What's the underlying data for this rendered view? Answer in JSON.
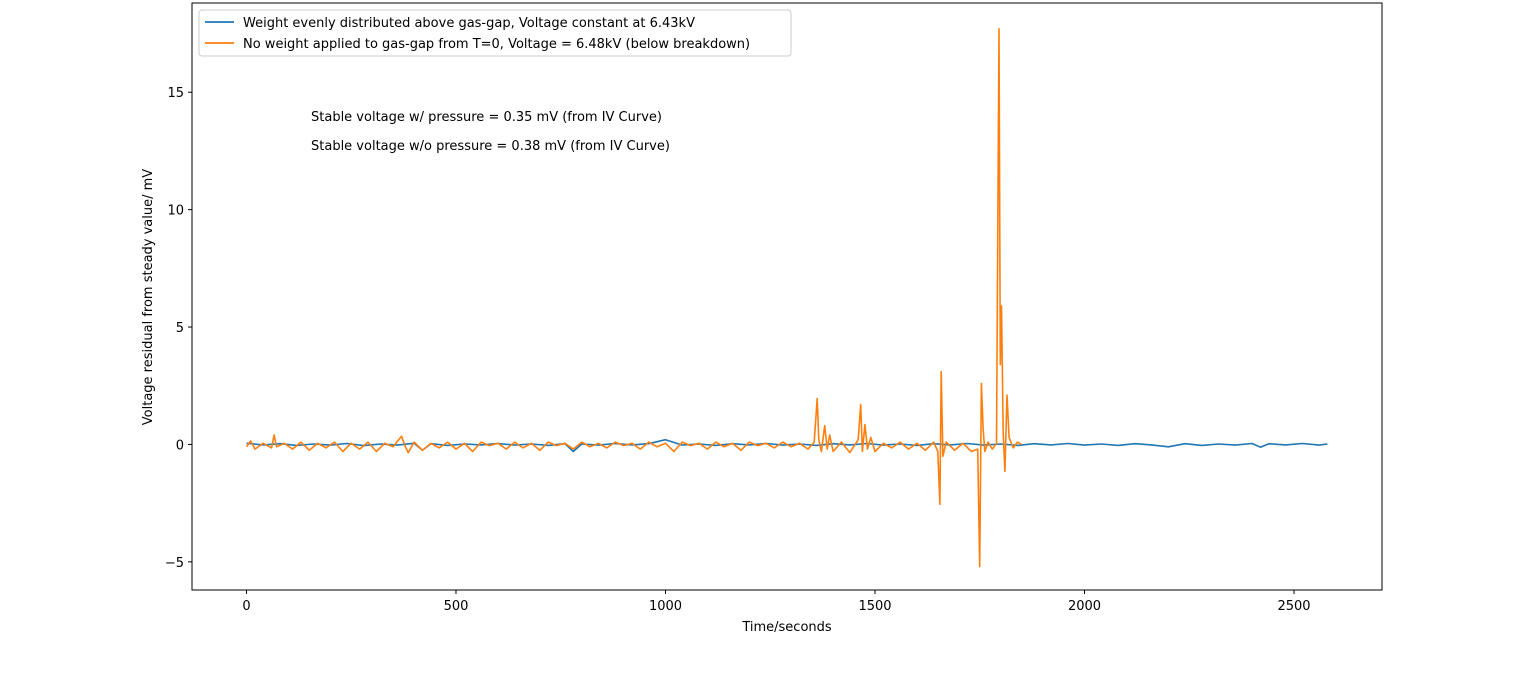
{
  "chart_data": {
    "type": "line",
    "title": "",
    "xlabel": "Time/seconds",
    "ylabel": "Voltage residual from steady value/ mV",
    "xlim": [
      -130,
      2710
    ],
    "ylim": [
      -6.2,
      18.8
    ],
    "xticks": [
      0,
      500,
      1000,
      1500,
      2000,
      2500
    ],
    "yticks": [
      -5,
      0,
      5,
      10,
      15
    ],
    "ytick_labels": [
      "−5",
      "0",
      "5",
      "10",
      "15"
    ],
    "grid": false,
    "legend_position": "top-left",
    "annotations": [
      {
        "text": "Stable voltage w/ pressure = 0.35 mV (from IV Curve)",
        "x": 155,
        "y": 13.9
      },
      {
        "text": "Stable voltage w/o pressure = 0.38 mV (from IV Curve)",
        "x": 155,
        "y": 12.65
      }
    ],
    "series": [
      {
        "name": "Weight evenly distributed above gas-gap, Voltage constant at 6.43kV",
        "color": "#1f77b4",
        "x": [
          0,
          40,
          80,
          120,
          160,
          200,
          240,
          280,
          320,
          360,
          400,
          420,
          440,
          480,
          520,
          560,
          600,
          640,
          680,
          720,
          760,
          780,
          800,
          840,
          880,
          920,
          960,
          1000,
          1040,
          1080,
          1120,
          1160,
          1200,
          1240,
          1280,
          1320,
          1360,
          1400,
          1440,
          1480,
          1520,
          1560,
          1600,
          1640,
          1680,
          1720,
          1760,
          1800,
          1840,
          1880,
          1920,
          1960,
          2000,
          2040,
          2080,
          2120,
          2160,
          2200,
          2240,
          2280,
          2320,
          2360,
          2400,
          2420,
          2440,
          2480,
          2520,
          2560,
          2580
        ],
        "y": [
          0.05,
          -0.02,
          0.03,
          -0.04,
          0.02,
          -0.03,
          0.04,
          -0.05,
          0.02,
          -0.03,
          0.05,
          -0.25,
          0.03,
          -0.04,
          0.02,
          -0.02,
          0.04,
          -0.03,
          0.02,
          -0.04,
          0.03,
          -0.3,
          0.02,
          -0.03,
          0.04,
          -0.02,
          0.03,
          0.2,
          -0.03,
          0.02,
          -0.04,
          0.03,
          -0.02,
          0.04,
          -0.03,
          0.02,
          -0.04,
          0.03,
          -0.02,
          0.04,
          -0.03,
          0.02,
          -0.04,
          0.03,
          -0.02,
          0.04,
          -0.03,
          0.02,
          -0.04,
          0.03,
          -0.02,
          0.04,
          -0.03,
          0.02,
          -0.04,
          0.03,
          -0.02,
          -0.1,
          0.03,
          -0.04,
          0.02,
          -0.03,
          0.04,
          -0.12,
          0.03,
          -0.02,
          0.04,
          -0.03,
          0.02
        ]
      },
      {
        "name": "No weight applied to gas-gap from T=0, Voltage = 6.48kV (below breakdown)",
        "color": "#ff7f0e",
        "x": [
          0,
          10,
          20,
          40,
          60,
          66,
          72,
          90,
          110,
          130,
          150,
          170,
          190,
          210,
          230,
          250,
          270,
          290,
          310,
          330,
          350,
          370,
          378,
          386,
          400,
          420,
          440,
          460,
          480,
          500,
          520,
          540,
          560,
          580,
          600,
          620,
          640,
          660,
          680,
          700,
          720,
          740,
          760,
          780,
          800,
          820,
          840,
          860,
          880,
          900,
          920,
          940,
          960,
          980,
          1000,
          1020,
          1040,
          1060,
          1080,
          1100,
          1120,
          1140,
          1160,
          1180,
          1200,
          1220,
          1240,
          1260,
          1280,
          1300,
          1320,
          1340,
          1355,
          1362,
          1366,
          1372,
          1380,
          1386,
          1392,
          1400,
          1420,
          1440,
          1460,
          1466,
          1470,
          1476,
          1482,
          1490,
          1500,
          1520,
          1540,
          1560,
          1580,
          1600,
          1620,
          1640,
          1650,
          1655,
          1658,
          1662,
          1670,
          1690,
          1710,
          1730,
          1745,
          1750,
          1754,
          1758,
          1762,
          1770,
          1780,
          1790,
          1796,
          1799,
          1802,
          1806,
          1810,
          1815,
          1820,
          1830,
          1840,
          1850
        ],
        "y": [
          -0.1,
          0.15,
          -0.2,
          0.05,
          -0.15,
          0.4,
          -0.1,
          0.05,
          -0.2,
          0.1,
          -0.25,
          0.05,
          -0.15,
          0.1,
          -0.3,
          0.05,
          -0.2,
          0.1,
          -0.3,
          0.05,
          -0.1,
          0.35,
          -0.05,
          -0.35,
          0.1,
          -0.25,
          0.05,
          -0.15,
          0.1,
          -0.2,
          0.05,
          -0.3,
          0.1,
          -0.05,
          0.05,
          -0.2,
          0.1,
          -0.15,
          0.05,
          -0.25,
          0.1,
          -0.05,
          0.05,
          -0.2,
          0.1,
          -0.1,
          0.05,
          -0.15,
          0.1,
          -0.05,
          0.05,
          -0.2,
          0.1,
          -0.1,
          0.05,
          -0.3,
          0.1,
          -0.05,
          0.05,
          -0.2,
          0.1,
          -0.1,
          0.05,
          -0.25,
          0.1,
          -0.05,
          0.05,
          -0.15,
          0.1,
          -0.1,
          0.05,
          -0.2,
          0.1,
          1.95,
          0.2,
          -0.3,
          0.8,
          -0.2,
          0.4,
          -0.3,
          0.1,
          -0.35,
          0.2,
          1.7,
          -0.3,
          0.85,
          -0.2,
          0.3,
          -0.3,
          0.05,
          -0.15,
          0.1,
          -0.2,
          0.05,
          -0.25,
          0.1,
          -0.3,
          -2.55,
          3.1,
          -0.5,
          0.1,
          -0.25,
          0.05,
          -0.3,
          -0.2,
          -5.2,
          2.6,
          0.7,
          -0.3,
          0.1,
          -0.2,
          0.05,
          17.7,
          3.4,
          5.9,
          0.5,
          -1.15,
          2.1,
          0.3,
          -0.15,
          0.1,
          0.0
        ]
      }
    ]
  }
}
